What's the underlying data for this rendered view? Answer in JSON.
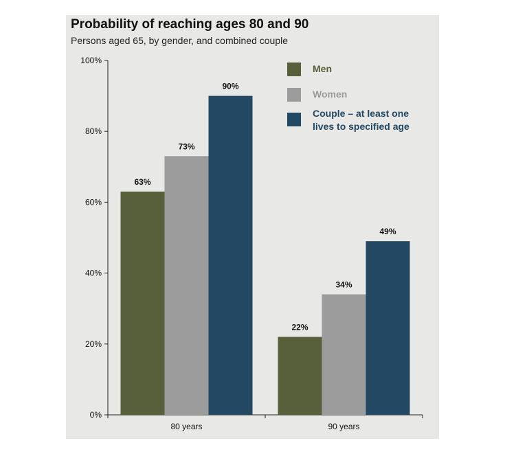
{
  "chart_data": {
    "type": "bar",
    "title": "Probability of reaching ages 80 and 90",
    "subtitle": "Persons aged 65, by gender, and combined couple",
    "xlabel": "",
    "ylabel": "",
    "categories": [
      "80 years",
      "90 years"
    ],
    "ylim": [
      0,
      100
    ],
    "yticks": [
      0,
      20,
      40,
      60,
      80,
      100
    ],
    "ytick_labels": [
      "0%",
      "20%",
      "40%",
      "60%",
      "80%",
      "100%"
    ],
    "grid": false,
    "legend_position": "top-right",
    "series": [
      {
        "name": "Men",
        "values": [
          63,
          22
        ],
        "labels": [
          "63%",
          "22%"
        ],
        "color": "#575f3b"
      },
      {
        "name": "Women",
        "values": [
          73,
          34
        ],
        "labels": [
          "73%",
          "34%"
        ],
        "color": "#9c9c9c"
      },
      {
        "name": "Couple – at least one lives to specified age",
        "legend_lines": [
          "Couple – at least one",
          "lives to specified age"
        ],
        "values": [
          90,
          49
        ],
        "labels": [
          "90%",
          "49%"
        ],
        "color": "#234864"
      }
    ]
  }
}
